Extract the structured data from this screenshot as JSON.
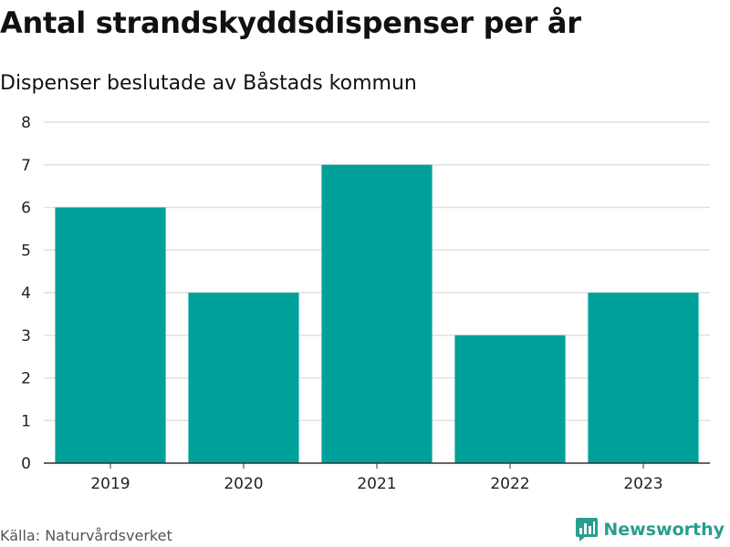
{
  "title": "Antal strandskyddsdispenser per år",
  "subtitle": "Dispenser beslutade av Båstads kommun",
  "source": "Källa: Naturvårdsverket",
  "brand": {
    "name": "Newsworthy",
    "icon": "newsworthy-logo-icon",
    "color": "#2a9d8f"
  },
  "colors": {
    "bar": "#00a19a",
    "grid": "#e1e1e1",
    "axis": "#333333"
  },
  "chart_data": {
    "type": "bar",
    "title": "Antal strandskyddsdispenser per år",
    "subtitle": "Dispenser beslutade av Båstads kommun",
    "xlabel": "",
    "ylabel": "",
    "categories": [
      "2019",
      "2020",
      "2021",
      "2022",
      "2023"
    ],
    "values": [
      6,
      4,
      7,
      3,
      4
    ],
    "ylim": [
      0,
      8
    ],
    "yticks": [
      0,
      1,
      2,
      3,
      4,
      5,
      6,
      7,
      8
    ],
    "grid": true,
    "legend": "none"
  }
}
